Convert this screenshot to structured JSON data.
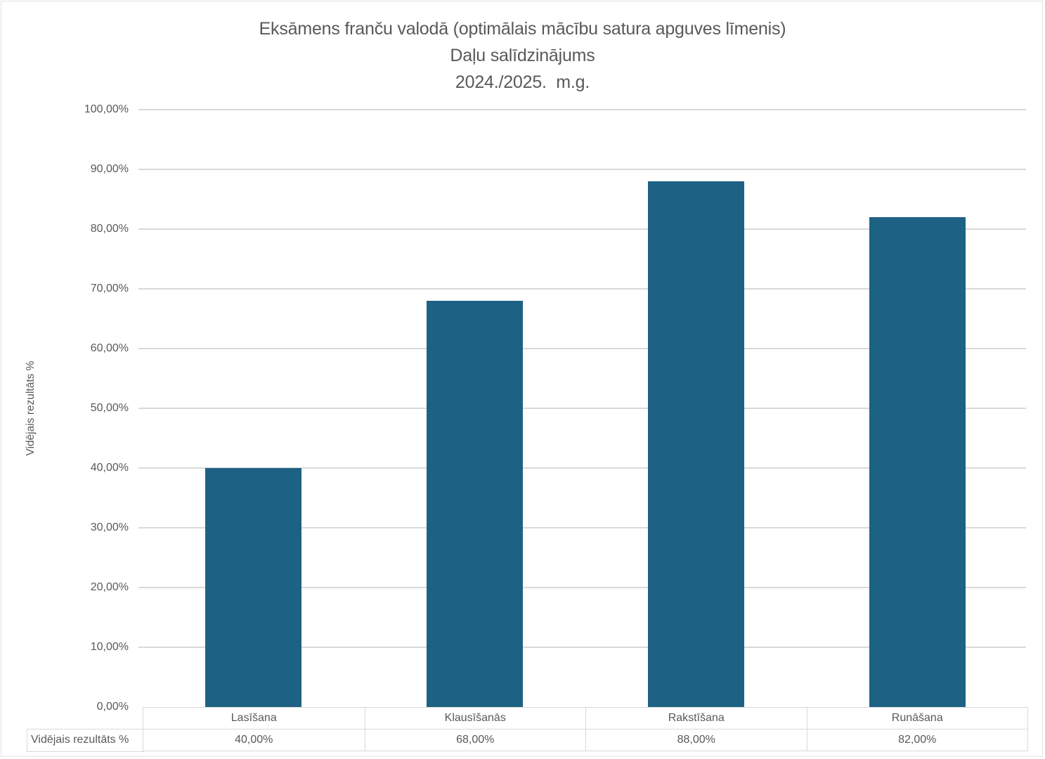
{
  "window": {
    "background": "#FFFFFF",
    "frame_border_color": "#E4E4E4"
  },
  "chart_data": {
    "type": "bar",
    "title_lines": [
      "Eksāmens franču valodā (optimālais mācību satura apguves līmenis)",
      "Daļu salīdzinājums",
      "2024./2025.  m.g."
    ],
    "categories": [
      "Lasīšana",
      "Klausīšanās",
      "Rakstīšana",
      "Runāšana"
    ],
    "series": [
      {
        "name": "Vidējais rezultāts %",
        "values": [
          40,
          68,
          88,
          82
        ],
        "value_labels": [
          "40,00%",
          "68,00%",
          "88,00%",
          "82,00%"
        ]
      }
    ],
    "xlabel": "",
    "ylabel": "Vidējais rezultāts %",
    "ylim": [
      0,
      100
    ],
    "y_ticks": [
      0,
      10,
      20,
      30,
      40,
      50,
      60,
      70,
      80,
      90,
      100
    ],
    "y_tick_labels": [
      "0,00%",
      "10,00%",
      "20,00%",
      "30,00%",
      "40,00%",
      "50,00%",
      "60,00%",
      "70,00%",
      "80,00%",
      "90,00%",
      "100,00%"
    ],
    "grid": true,
    "legend_position": "none",
    "data_table": {
      "shown": true,
      "row_label": "Vidējais rezultāts %"
    },
    "colors": {
      "bar": "#1D6285",
      "gridline": "#D9D9D9",
      "table_border": "#D9D9D9",
      "text": "#595959"
    }
  }
}
